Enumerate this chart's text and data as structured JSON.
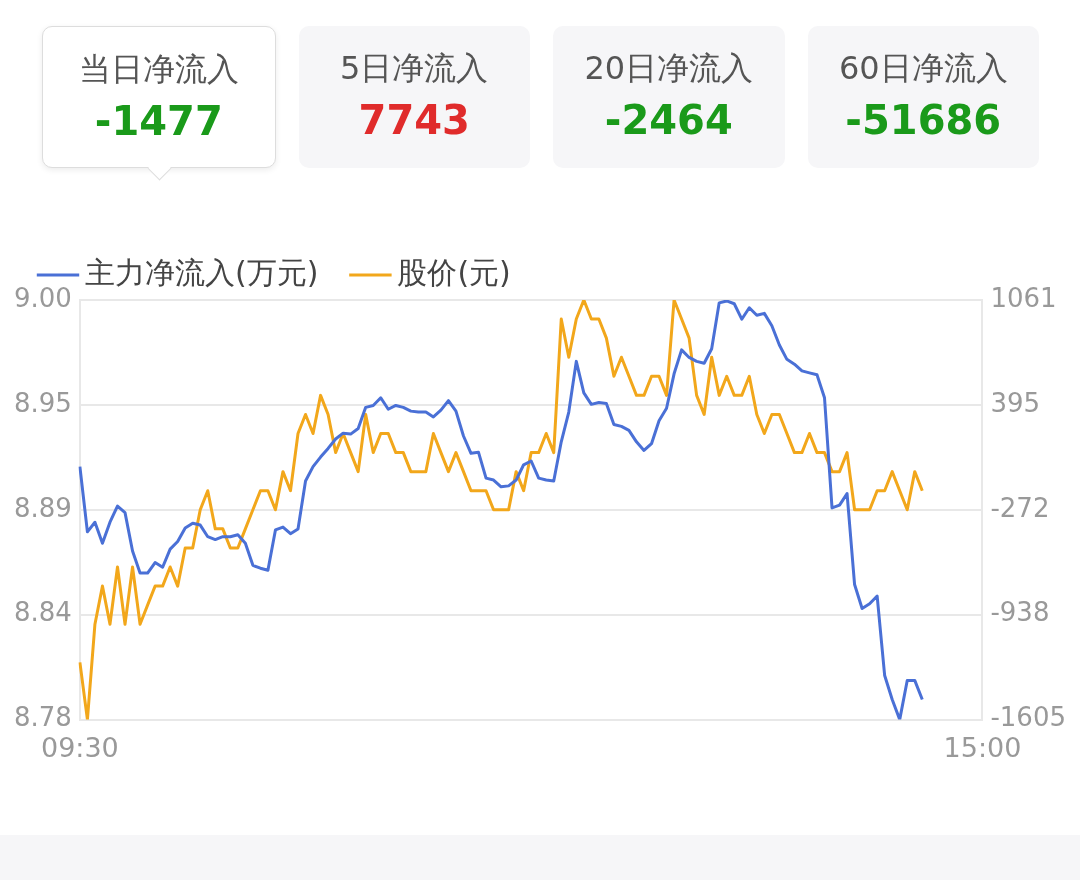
{
  "chart_data": [
    {
      "type": "other",
      "categories": [
        "当日净流入",
        "5日净流入",
        "20日净流入",
        "60日净流入"
      ],
      "values": [
        -1477,
        7743,
        -2464,
        -51686
      ],
      "data_labels": true
    },
    {
      "type": "line",
      "categories": [
        "09:30",
        null,
        null,
        null,
        null,
        null,
        null,
        null,
        null,
        null,
        null,
        null,
        null,
        null,
        null,
        null,
        null,
        null,
        null,
        null,
        null,
        null,
        null,
        null,
        null,
        null,
        null,
        null,
        null,
        null,
        null,
        null,
        null,
        null,
        null,
        null,
        null,
        null,
        null,
        null,
        null,
        null,
        null,
        null,
        null,
        null,
        null,
        null,
        null,
        null,
        null,
        null,
        null,
        null,
        null,
        null,
        null,
        null,
        null,
        null,
        null,
        null,
        null,
        null,
        null,
        null,
        null,
        null,
        null,
        null,
        null,
        null,
        null,
        null,
        null,
        null,
        null,
        null,
        null,
        null,
        null,
        null,
        null,
        null,
        null,
        null,
        null,
        null,
        null,
        null,
        null,
        null,
        null,
        null,
        null,
        null,
        null,
        null,
        null,
        null,
        null,
        null,
        null,
        null,
        null,
        null,
        null,
        null,
        null,
        null,
        null,
        null,
        null,
        null,
        null,
        null,
        null,
        null,
        null,
        null,
        "15:00"
      ],
      "series": [
        {
          "name": "主力净流入(万元)",
          "color": "#4a70d6",
          "axis": "y2",
          "values": [
            2,
            -412,
            -351,
            -485,
            -351,
            -248,
            -290,
            -534,
            -674,
            -674,
            -607,
            -637,
            -522,
            -473,
            -388,
            -357,
            -369,
            -443,
            -461,
            -443,
            -443,
            -431,
            -485,
            -625,
            -643,
            -656,
            -400,
            -382,
            -424,
            -394,
            -89,
            2,
            63,
            118,
            178,
            215,
            209,
            245,
            379,
            391,
            440,
            367,
            391,
            379,
            355,
            349,
            349,
            318,
            361,
            422,
            355,
            197,
            87,
            93,
            -71,
            -83,
            -126,
            -120,
            -83,
            14,
            38,
            -71,
            -83,
            -89,
            160,
            349,
            671,
            471,
            398,
            410,
            404,
            270,
            258,
            233,
            160,
            105,
            148,
            294,
            373,
            592,
            744,
            696,
            671,
            659,
            751,
            1043,
            1055,
            1037,
            939,
            1012,
            964,
            976,
            897,
            775,
            684,
            653,
            611,
            598,
            586,
            440,
            -260,
            -242,
            -169,
            -747,
            -899,
            -869,
            -820,
            -1325,
            -1477,
            -1605,
            -1356,
            -1356,
            -1477,
            null,
            null,
            null,
            null,
            null,
            null,
            null,
            null
          ]
        },
        {
          "name": "股价(元)",
          "color": "#f2a71b",
          "values": [
            8.81,
            8.78,
            8.83,
            8.85,
            8.83,
            8.86,
            8.83,
            8.86,
            8.83,
            8.84,
            8.85,
            8.85,
            8.86,
            8.85,
            8.87,
            8.87,
            8.89,
            8.9,
            8.88,
            8.88,
            8.87,
            8.87,
            8.88,
            8.89,
            8.9,
            8.9,
            8.89,
            8.91,
            8.9,
            8.93,
            8.94,
            8.93,
            8.95,
            8.94,
            8.92,
            8.93,
            8.92,
            8.91,
            8.94,
            8.92,
            8.93,
            8.93,
            8.92,
            8.92,
            8.91,
            8.91,
            8.91,
            8.93,
            8.92,
            8.91,
            8.92,
            8.91,
            8.9,
            8.9,
            8.9,
            8.89,
            8.89,
            8.89,
            8.91,
            8.9,
            8.92,
            8.92,
            8.93,
            8.92,
            8.99,
            8.97,
            8.99,
            9.0,
            8.99,
            8.99,
            8.98,
            8.96,
            8.97,
            8.96,
            8.95,
            8.95,
            8.96,
            8.96,
            8.95,
            9.0,
            8.99,
            8.98,
            8.95,
            8.94,
            8.97,
            8.95,
            8.96,
            8.95,
            8.95,
            8.96,
            8.94,
            8.93,
            8.94,
            8.94,
            8.93,
            8.92,
            8.92,
            8.93,
            8.92,
            8.92,
            8.91,
            8.91,
            8.92,
            8.89,
            8.89,
            8.89,
            8.9,
            8.9,
            8.91,
            8.9,
            8.89,
            8.91,
            8.9,
            null,
            null,
            null,
            null,
            null,
            null,
            null,
            null
          ]
        }
      ],
      "ylim": [
        8.78,
        9.0
      ],
      "yticks": [
        8.78,
        {
          "value": 8.835,
          "label": "8.84"
        },
        8.89,
        {
          "value": 8.945,
          "label": "8.95"
        },
        {
          "value": 9.0,
          "label": "9.00"
        }
      ],
      "y2lim": [
        -1605,
        1061
      ],
      "y2ticks": [
        -1605,
        {
          "value": -938.5,
          "label": "-938"
        },
        -272,
        {
          "value": 394.5,
          "label": "395"
        },
        1061
      ],
      "grid": "y",
      "legend": "top left",
      "marker": "none"
    }
  ]
}
